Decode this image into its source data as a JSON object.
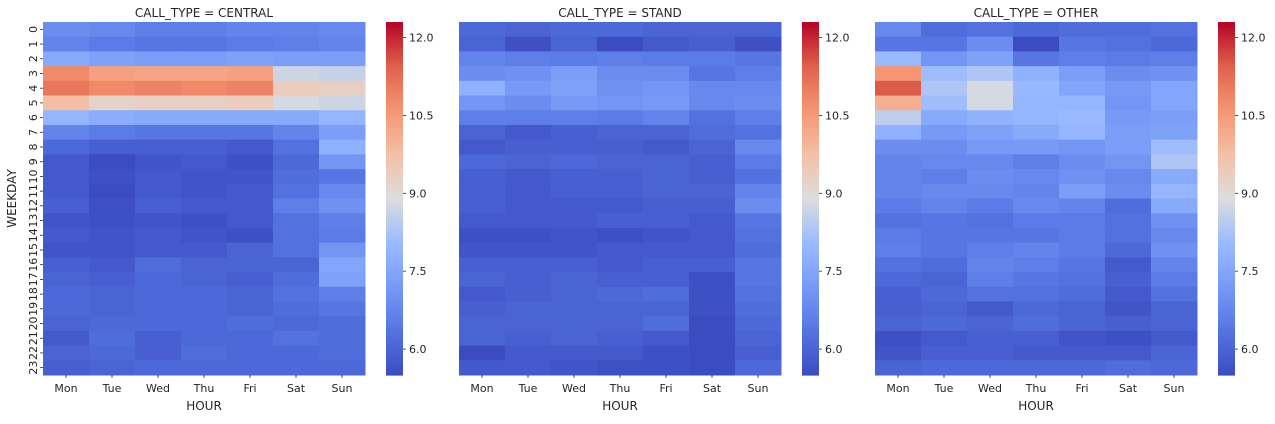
{
  "chart_data": [
    {
      "type": "heatmap",
      "title": "CALL_TYPE = CENTRAL",
      "xlabel": "HOUR",
      "ylabel": "WEEKDAY",
      "x_categories": [
        "Mon",
        "Tue",
        "Wed",
        "Thu",
        "Fri",
        "Sat",
        "Sun"
      ],
      "y_categories": [
        "0",
        "1",
        "2",
        "3",
        "4",
        "5",
        "6",
        "7",
        "8",
        "9",
        "10",
        "11",
        "12",
        "13",
        "14",
        "15",
        "16",
        "17",
        "18",
        "19",
        "20",
        "21",
        "22",
        "23"
      ],
      "values": [
        [
          6.9,
          6.8,
          6.6,
          6.6,
          6.7,
          6.7,
          6.8
        ],
        [
          6.7,
          6.5,
          6.4,
          6.4,
          6.5,
          6.6,
          6.7
        ],
        [
          7.6,
          7.4,
          7.3,
          7.3,
          7.4,
          7.3,
          7.3
        ],
        [
          10.8,
          10.4,
          10.3,
          10.3,
          10.4,
          8.7,
          8.6
        ],
        [
          11.1,
          10.8,
          10.9,
          10.8,
          10.9,
          9.4,
          9.3
        ],
        [
          9.8,
          9.2,
          9.3,
          9.3,
          9.4,
          8.8,
          8.7
        ],
        [
          7.9,
          7.7,
          7.6,
          7.6,
          7.6,
          7.6,
          7.9
        ],
        [
          6.7,
          6.5,
          6.4,
          6.4,
          6.4,
          6.7,
          7.3
        ],
        [
          6.1,
          5.9,
          5.9,
          5.9,
          5.8,
          6.3,
          7.8
        ],
        [
          5.8,
          5.5,
          5.7,
          5.8,
          5.6,
          6.1,
          7.1
        ],
        [
          5.8,
          5.6,
          5.8,
          5.7,
          5.7,
          6.2,
          6.4
        ],
        [
          5.8,
          5.5,
          5.8,
          5.7,
          5.8,
          6.3,
          6.8
        ],
        [
          5.9,
          5.6,
          5.9,
          5.8,
          5.8,
          6.6,
          7.0
        ],
        [
          5.7,
          5.6,
          5.7,
          5.6,
          5.8,
          6.3,
          6.6
        ],
        [
          5.8,
          5.7,
          5.8,
          5.7,
          5.6,
          6.3,
          6.5
        ],
        [
          5.7,
          5.7,
          5.8,
          5.8,
          6.0,
          6.3,
          7.1
        ],
        [
          5.9,
          5.8,
          6.2,
          6.0,
          6.0,
          6.0,
          7.5
        ],
        [
          6.0,
          5.9,
          6.1,
          6.0,
          5.9,
          6.2,
          7.4
        ],
        [
          6.1,
          6.0,
          6.1,
          6.1,
          6.0,
          6.3,
          6.6
        ],
        [
          6.1,
          6.0,
          6.1,
          6.1,
          6.0,
          6.2,
          6.4
        ],
        [
          6.0,
          6.1,
          6.1,
          6.1,
          6.2,
          6.1,
          6.2
        ],
        [
          5.8,
          6.2,
          5.9,
          6.1,
          6.1,
          6.3,
          6.2
        ],
        [
          6.0,
          6.1,
          5.9,
          6.2,
          6.1,
          6.1,
          6.2
        ],
        [
          5.9,
          6.0,
          6.1,
          6.1,
          6.1,
          6.1,
          6.1
        ]
      ],
      "colorbar": {
        "ticks": [
          6.0,
          7.5,
          9.0,
          10.5,
          12.0
        ],
        "tick_labels": [
          "6.0",
          "7.5",
          "9.0",
          "10.5",
          "12.0"
        ],
        "range": [
          5.5,
          12.3
        ],
        "colormap": "coolwarm"
      }
    },
    {
      "type": "heatmap",
      "title": "CALL_TYPE = STAND",
      "xlabel": "HOUR",
      "ylabel": "",
      "x_categories": [
        "Mon",
        "Tue",
        "Wed",
        "Thu",
        "Fri",
        "Sat",
        "Sun"
      ],
      "y_categories": [
        "0",
        "1",
        "2",
        "3",
        "4",
        "5",
        "6",
        "7",
        "8",
        "9",
        "10",
        "11",
        "12",
        "13",
        "14",
        "15",
        "16",
        "17",
        "18",
        "19",
        "20",
        "21",
        "22",
        "23"
      ],
      "values": [
        [
          6.1,
          6.0,
          6.1,
          6.1,
          6.0,
          6.0,
          6.0
        ],
        [
          6.0,
          5.6,
          6.0,
          5.5,
          5.8,
          5.9,
          5.6
        ],
        [
          6.7,
          6.6,
          6.5,
          6.6,
          6.5,
          6.5,
          6.4
        ],
        [
          6.9,
          7.0,
          7.3,
          6.9,
          6.9,
          6.4,
          6.6
        ],
        [
          7.8,
          7.2,
          7.4,
          7.0,
          7.1,
          6.8,
          6.8
        ],
        [
          7.1,
          6.9,
          7.2,
          7.1,
          7.2,
          6.8,
          6.9
        ],
        [
          6.6,
          6.6,
          6.6,
          6.5,
          6.7,
          6.3,
          6.6
        ],
        [
          6.0,
          5.8,
          5.9,
          6.0,
          6.0,
          6.2,
          6.3
        ],
        [
          5.8,
          5.9,
          5.9,
          5.9,
          5.8,
          6.0,
          6.8
        ],
        [
          6.1,
          6.0,
          6.1,
          6.0,
          6.0,
          5.9,
          6.5
        ],
        [
          5.9,
          5.8,
          5.9,
          5.9,
          6.0,
          5.9,
          6.3
        ],
        [
          5.9,
          5.8,
          5.9,
          5.9,
          6.0,
          6.0,
          6.7
        ],
        [
          5.9,
          5.8,
          5.8,
          5.8,
          5.9,
          5.9,
          6.9
        ],
        [
          5.8,
          5.8,
          5.8,
          5.9,
          5.9,
          5.8,
          6.4
        ],
        [
          5.6,
          5.6,
          5.7,
          5.6,
          5.7,
          5.8,
          6.3
        ],
        [
          5.7,
          5.7,
          5.7,
          5.8,
          5.8,
          5.8,
          6.2
        ],
        [
          5.9,
          5.9,
          5.9,
          5.8,
          5.9,
          5.9,
          6.4
        ],
        [
          6.0,
          5.9,
          6.0,
          5.9,
          5.9,
          5.6,
          6.4
        ],
        [
          5.8,
          5.9,
          6.0,
          6.1,
          6.2,
          5.6,
          6.3
        ],
        [
          5.9,
          6.0,
          6.0,
          6.0,
          6.0,
          5.6,
          6.2
        ],
        [
          6.0,
          6.0,
          6.0,
          6.0,
          6.2,
          5.5,
          6.1
        ],
        [
          6.0,
          5.9,
          6.0,
          5.9,
          5.8,
          5.5,
          6.0
        ],
        [
          5.5,
          5.8,
          5.8,
          5.8,
          5.6,
          5.5,
          5.9
        ],
        [
          5.8,
          5.8,
          5.7,
          5.6,
          5.6,
          5.5,
          6.1
        ]
      ],
      "colorbar": {
        "ticks": [
          6.0,
          7.5,
          9.0,
          10.5,
          12.0
        ],
        "tick_labels": [
          "6.0",
          "7.5",
          "9.0",
          "10.5",
          "12.0"
        ],
        "range": [
          5.5,
          12.3
        ],
        "colormap": "coolwarm"
      }
    },
    {
      "type": "heatmap",
      "title": "CALL_TYPE = OTHER",
      "xlabel": "HOUR",
      "ylabel": "",
      "x_categories": [
        "Mon",
        "Tue",
        "Wed",
        "Thu",
        "Fri",
        "Sat",
        "Sun"
      ],
      "y_categories": [
        "0",
        "1",
        "2",
        "3",
        "4",
        "5",
        "6",
        "7",
        "8",
        "9",
        "10",
        "11",
        "12",
        "13",
        "14",
        "15",
        "16",
        "17",
        "18",
        "19",
        "20",
        "21",
        "22",
        "23"
      ],
      "values": [
        [
          6.8,
          6.2,
          6.3,
          6.1,
          6.2,
          6.2,
          6.3
        ],
        [
          6.4,
          6.4,
          6.9,
          5.5,
          6.4,
          6.3,
          6.1
        ],
        [
          8.0,
          7.1,
          7.4,
          6.4,
          6.6,
          6.5,
          6.6
        ],
        [
          10.6,
          8.1,
          8.3,
          7.8,
          7.3,
          6.9,
          7.0
        ],
        [
          11.5,
          8.3,
          8.8,
          8.0,
          7.5,
          7.2,
          7.5
        ],
        [
          10.1,
          8.1,
          8.8,
          7.9,
          7.9,
          7.1,
          7.5
        ],
        [
          8.5,
          7.6,
          7.8,
          7.9,
          8.0,
          7.2,
          7.3
        ],
        [
          7.8,
          7.2,
          7.4,
          7.6,
          7.9,
          7.3,
          7.4
        ],
        [
          6.9,
          6.9,
          7.2,
          7.2,
          7.1,
          7.3,
          8.1
        ],
        [
          6.7,
          6.8,
          6.8,
          6.6,
          6.9,
          7.1,
          8.3
        ],
        [
          6.7,
          6.6,
          6.9,
          6.8,
          7.0,
          6.8,
          7.6
        ],
        [
          6.7,
          6.8,
          6.8,
          6.7,
          7.3,
          6.9,
          7.9
        ],
        [
          6.5,
          6.7,
          6.5,
          6.8,
          6.7,
          6.2,
          7.6
        ],
        [
          6.3,
          6.4,
          6.3,
          6.5,
          6.5,
          6.3,
          7.0
        ],
        [
          6.5,
          6.4,
          6.4,
          6.4,
          6.5,
          6.3,
          6.8
        ],
        [
          6.6,
          6.4,
          6.6,
          6.7,
          6.5,
          6.1,
          7.0
        ],
        [
          6.3,
          6.2,
          6.7,
          6.6,
          6.4,
          5.8,
          6.7
        ],
        [
          6.1,
          6.0,
          6.6,
          6.4,
          6.3,
          5.9,
          6.5
        ],
        [
          5.9,
          6.1,
          6.3,
          6.3,
          6.2,
          5.8,
          6.3
        ],
        [
          5.9,
          6.0,
          5.8,
          6.1,
          6.0,
          5.7,
          6.0
        ],
        [
          6.0,
          6.1,
          6.0,
          6.2,
          6.0,
          5.9,
          6.0
        ],
        [
          5.6,
          5.8,
          5.9,
          5.9,
          5.7,
          5.6,
          5.8
        ],
        [
          5.7,
          5.9,
          5.9,
          5.8,
          5.8,
          5.8,
          6.0
        ],
        [
          6.0,
          6.1,
          6.1,
          6.1,
          6.1,
          6.2,
          6.1
        ]
      ],
      "colorbar": {
        "ticks": [
          6.0,
          7.5,
          9.0,
          10.5,
          12.0
        ],
        "tick_labels": [
          "6.0",
          "7.5",
          "9.0",
          "10.5",
          "12.0"
        ],
        "range": [
          5.5,
          12.3
        ],
        "colormap": "coolwarm"
      }
    }
  ]
}
